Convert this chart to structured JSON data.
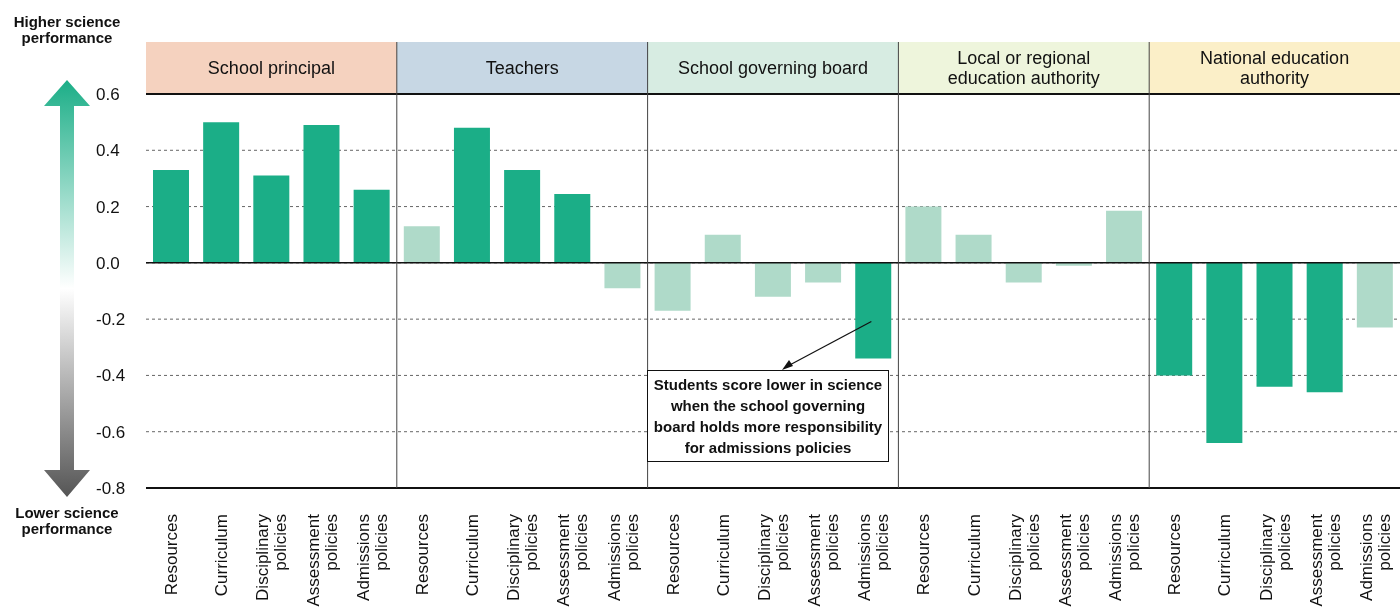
{
  "chart_data": {
    "type": "bar",
    "categories": [
      "Resources",
      "Curriculum",
      "Disciplinary policies",
      "Assessment policies",
      "Admissions policies",
      "Resources",
      "Curriculum",
      "Disciplinary policies",
      "Assessment policies",
      "Admissions policies",
      "Resources",
      "Curriculum",
      "Disciplinary policies",
      "Assessment policies",
      "Admissions policies",
      "Resources",
      "Curriculum",
      "Disciplinary policies",
      "Assessment policies",
      "Admissions policies",
      "Resources",
      "Curriculum",
      "Disciplinary policies",
      "Assessment policies",
      "Admissions policies"
    ],
    "values": [
      0.33,
      0.5,
      0.31,
      0.49,
      0.26,
      0.13,
      0.48,
      0.33,
      0.245,
      -0.09,
      -0.17,
      0.1,
      -0.12,
      -0.07,
      -0.34,
      0.2,
      0.1,
      -0.07,
      -0.01,
      0.185,
      -0.4,
      -0.64,
      -0.44,
      -0.46,
      -0.23
    ],
    "colors": [
      "#1bae87",
      "#1bae87",
      "#1bae87",
      "#1bae87",
      "#1bae87",
      "#afdac9",
      "#1bae87",
      "#1bae87",
      "#1bae87",
      "#afdac9",
      "#afdac9",
      "#afdac9",
      "#afdac9",
      "#afdac9",
      "#1bae87",
      "#afdac9",
      "#afdac9",
      "#afdac9",
      "#afdac9",
      "#afdac9",
      "#1bae87",
      "#1bae87",
      "#1bae87",
      "#1bae87",
      "#afdac9"
    ],
    "ylim": [
      -0.8,
      0.6
    ],
    "yticks": [
      {
        "value": -0.8,
        "label": "-0.8"
      },
      {
        "value": -0.6,
        "label": "-0.6"
      },
      {
        "value": -0.4,
        "label": "-0.4"
      },
      {
        "value": -0.2,
        "label": "-0.2"
      },
      {
        "value": 0,
        "label": "0.0"
      },
      {
        "value": 0.2,
        "label": "0.2"
      },
      {
        "value": 0.4,
        "label": "0.4"
      },
      {
        "value": 0.6,
        "label": "0.6"
      }
    ],
    "grid": "y",
    "annotations": [
      "School principal",
      "Teachers",
      "School governing board",
      "Local or regional education authority",
      "National education authority",
      "Students score lower in science when the school governing board holds more responsibility for admissions policies",
      "Higher science performance",
      "Lower science performance"
    ]
  }
}
